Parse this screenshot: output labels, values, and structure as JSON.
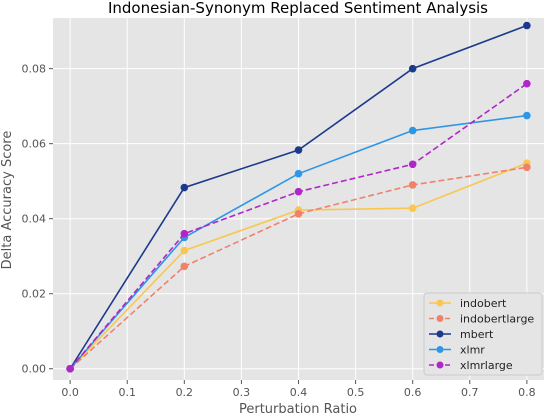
{
  "chart_data": {
    "type": "line",
    "title": "Indonesian-Synonym Replaced Sentiment Analysis",
    "xlabel": "Perturbation Ratio",
    "ylabel": "Delta Accuracy Score",
    "x": [
      0.0,
      0.2,
      0.4,
      0.6,
      0.8
    ],
    "xlim": [
      -0.03,
      0.83
    ],
    "ylim": [
      -0.003,
      0.0935
    ],
    "xticks": [
      "0.0",
      "0.1",
      "0.2",
      "0.3",
      "0.4",
      "0.5",
      "0.6",
      "0.7",
      "0.8"
    ],
    "yticks": [
      "0.00",
      "0.02",
      "0.04",
      "0.06",
      "0.08"
    ],
    "grid": true,
    "legend_position": "bottom-right",
    "series": [
      {
        "name": "indobert",
        "color": "#f9c74f",
        "dash": "solid",
        "values": [
          0.0,
          0.0315,
          0.0423,
          0.0428,
          0.0548
        ]
      },
      {
        "name": "indobertlarge",
        "color": "#f0826a",
        "dash": "dashed",
        "values": [
          0.0,
          0.0273,
          0.0413,
          0.049,
          0.0537
        ]
      },
      {
        "name": "mbert",
        "color": "#1c3a8c",
        "dash": "solid",
        "values": [
          0.0,
          0.0483,
          0.0583,
          0.08,
          0.0915
        ]
      },
      {
        "name": "xlmr",
        "color": "#2e96e6",
        "dash": "solid",
        "values": [
          0.0,
          0.035,
          0.052,
          0.0635,
          0.0675
        ]
      },
      {
        "name": "xlmrlarge",
        "color": "#b026c9",
        "dash": "dashed",
        "values": [
          0.0,
          0.036,
          0.0472,
          0.0545,
          0.076
        ]
      }
    ]
  }
}
